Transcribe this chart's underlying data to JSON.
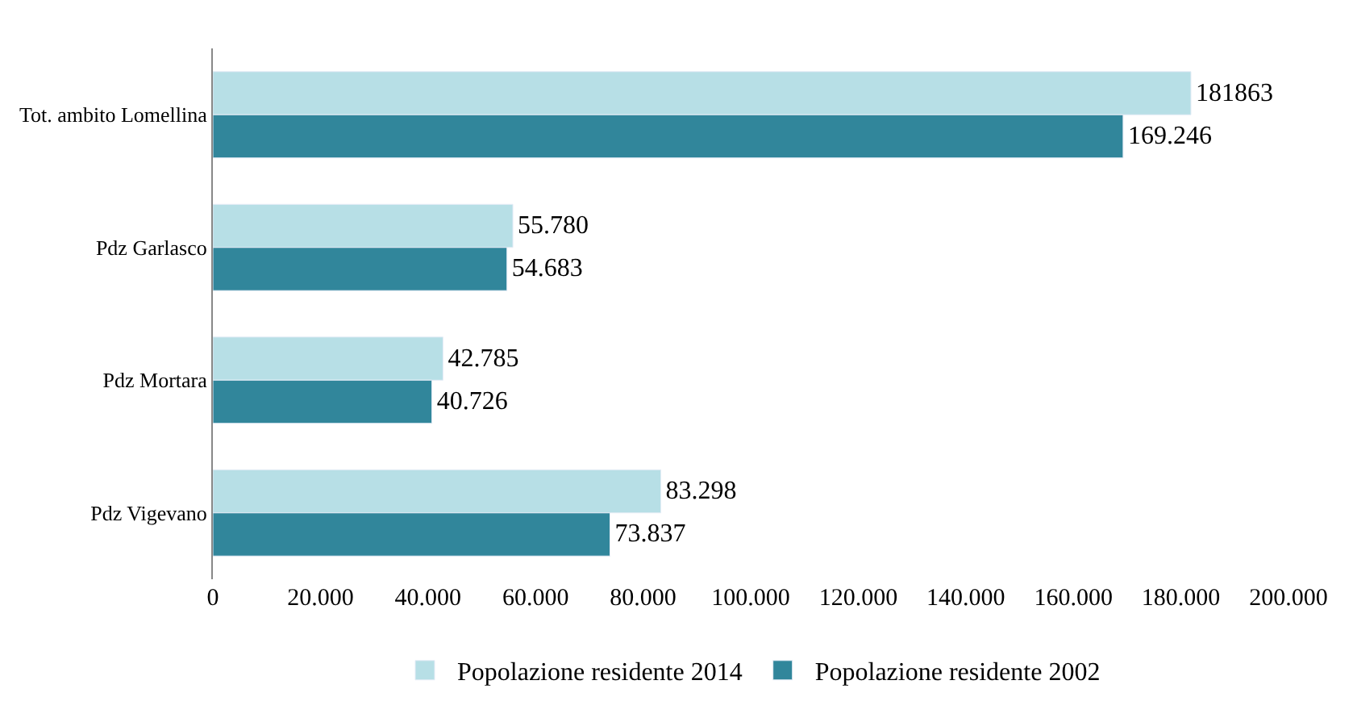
{
  "chart_data": {
    "type": "bar",
    "orientation": "horizontal",
    "categories": [
      "Tot. ambito Lomellina",
      "Pdz Garlasco",
      "Pdz Mortara",
      "Pdz Vigevano"
    ],
    "series": [
      {
        "name": "Popolazione residente 2014",
        "color": "#b7dfe6",
        "values": [
          181863,
          55780,
          42785,
          83298
        ],
        "value_labels": [
          "181863",
          "55.780",
          "42.785",
          "83.298"
        ]
      },
      {
        "name": "Popolazione residente 2002",
        "color": "#31869b",
        "values": [
          169246,
          54683,
          40726,
          73837
        ],
        "value_labels": [
          "169.246",
          "54.683",
          "40.726",
          "73.837"
        ]
      }
    ],
    "xlim": [
      0,
      200000
    ],
    "xticks": [
      0,
      {
        "value": 20000,
        "label": "20.000"
      },
      {
        "value": 40000,
        "label": "40.000"
      },
      {
        "value": 60000,
        "label": "60.000"
      },
      {
        "value": 80000,
        "label": "80.000"
      },
      {
        "value": 100000,
        "label": "100.000"
      },
      {
        "value": 120000,
        "label": "120.000"
      },
      {
        "value": 140000,
        "label": "140.000"
      },
      {
        "value": 160000,
        "label": "160.000"
      },
      {
        "value": 180000,
        "label": "180.000"
      },
      {
        "value": 200000,
        "label": "200.000"
      }
    ],
    "legend": "bottom"
  }
}
